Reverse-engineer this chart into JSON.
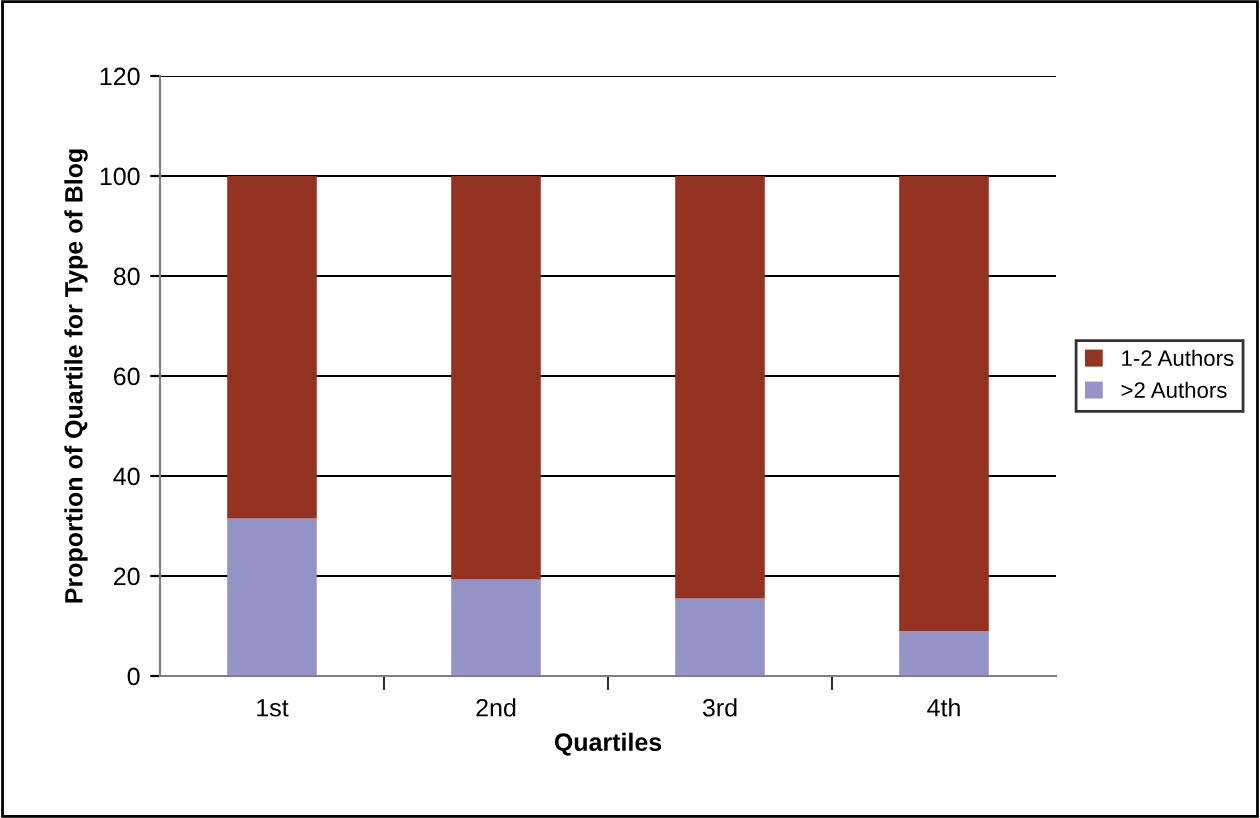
{
  "chart_data": {
    "type": "bar",
    "stacked": true,
    "xlabel": "Quartiles",
    "ylabel": "Proportion of Quartile for Type of Blog",
    "categories": [
      "1st",
      "2nd",
      "3rd",
      "4th"
    ],
    "series": [
      {
        "name": ">2 Authors",
        "color": "#9494c8",
        "values": [
          31.5,
          19.3,
          15.5,
          9
        ]
      },
      {
        "name": "1-2 Authors",
        "color": "#953322",
        "values": [
          68.5,
          80.7,
          84.5,
          91
        ]
      }
    ],
    "ylim": [
      0,
      120
    ],
    "yticks": [
      0,
      20,
      40,
      60,
      80,
      100,
      120
    ],
    "grid": "y",
    "legend": "right"
  }
}
